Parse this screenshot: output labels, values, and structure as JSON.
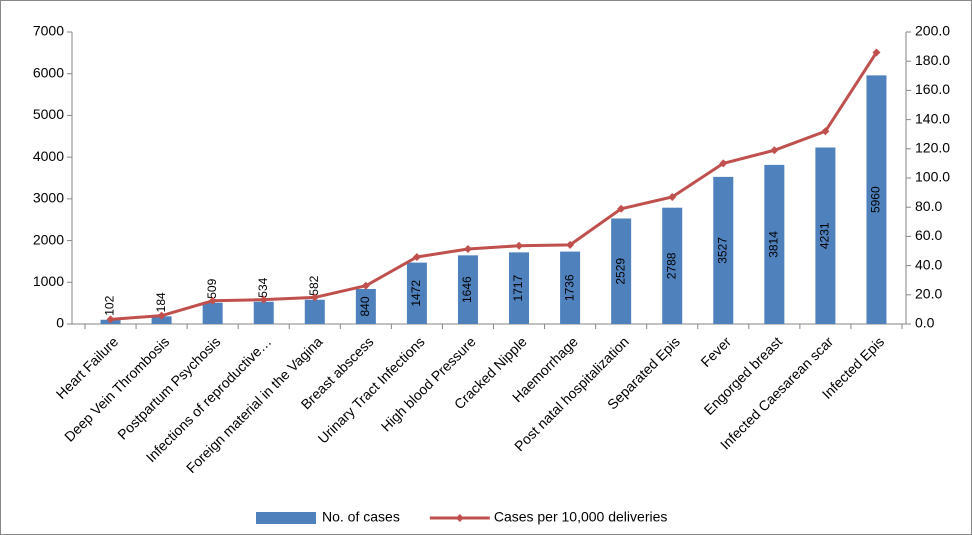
{
  "chart_data": {
    "type": "bar",
    "categories": [
      "Heart Failure",
      "Deep Vein Thrombosis",
      "Postpartum Psychosis",
      "Infections of reproductive…",
      "Foreign material in the Vagina",
      "Breast abscess",
      "Urinary Tract Infections",
      "High blood Pressure",
      "Cracked Nipple",
      "Haemorrhage",
      "Post natal hospitalization",
      "Separated Epis",
      "Fever",
      "Engorged breast",
      "Infected Caesarean scar",
      "Infected Epis"
    ],
    "series": [
      {
        "name": "No. of cases",
        "type": "bar",
        "color": "#4f81bd",
        "values": [
          102,
          184,
          509,
          534,
          582,
          840,
          1472,
          1646,
          1717,
          1736,
          2529,
          2788,
          3527,
          3814,
          4231,
          5960
        ]
      },
      {
        "name": "Cases per 10,000 deliveries",
        "type": "line",
        "color": "#c0504d",
        "axis": "y2",
        "values": [
          3.2,
          5.7,
          15.9,
          16.7,
          18.2,
          26.2,
          45.9,
          51.4,
          53.6,
          54.2,
          78.9,
          87.0,
          110.0,
          119.0,
          132.0,
          186.0
        ]
      }
    ],
    "ylim": [
      0,
      7000
    ],
    "yticks": [
      0,
      1000,
      2000,
      3000,
      4000,
      5000,
      6000,
      7000
    ],
    "y2lim": [
      0,
      200
    ],
    "y2ticks": [
      {
        "value": 0,
        "label": "0.0"
      },
      {
        "value": 20,
        "label": "20.0"
      },
      {
        "value": 40,
        "label": "40.0"
      },
      {
        "value": 60,
        "label": "60.0"
      },
      {
        "value": 80,
        "label": "80.0"
      },
      {
        "value": 100,
        "label": "100.0"
      },
      {
        "value": 120,
        "label": "120.0"
      },
      {
        "value": 140,
        "label": "140.0"
      },
      {
        "value": 160,
        "label": "160.0"
      },
      {
        "value": 180,
        "label": "180.0"
      },
      {
        "value": 200,
        "label": "200.0"
      }
    ],
    "legend": "bottom"
  }
}
